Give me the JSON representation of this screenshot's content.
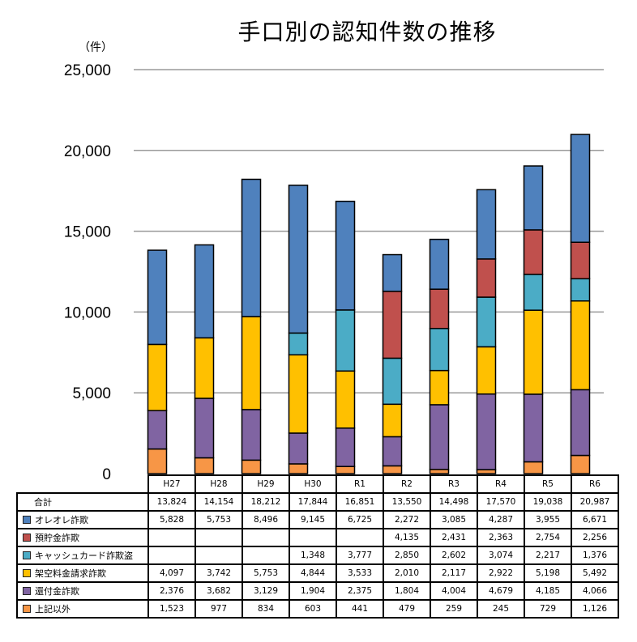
{
  "chart_data": {
    "type": "bar",
    "stacked": true,
    "title": "手口別の認知件数の推移",
    "ylabel": "（件）",
    "xlabel": "",
    "ylim": [
      0,
      25000
    ],
    "yticks": [
      0,
      5000,
      10000,
      15000,
      20000,
      25000
    ],
    "ytick_labels": [
      "0",
      "5,000",
      "10,000",
      "15,000",
      "20,000",
      "25,000"
    ],
    "grid": true,
    "legend": "table-left",
    "categories": [
      "H27",
      "H28",
      "H29",
      "H30",
      "R1",
      "R2",
      "R3",
      "R4",
      "R5",
      "R6"
    ],
    "totals_label": "合計",
    "totals": [
      13824,
      14154,
      18212,
      17844,
      16851,
      13550,
      14498,
      17570,
      19038,
      20987
    ],
    "totals_display": [
      "13,824",
      "14,154",
      "18,212",
      "17,844",
      "16,851",
      "13,550",
      "14,498",
      "17,570",
      "19,038",
      "20,987"
    ],
    "series_stack_order": [
      "上記以外",
      "還付金詐欺",
      "架空料金請求詐欺",
      "キャッシュカード詐欺盗",
      "預貯金詐欺",
      "オレオレ詐欺"
    ],
    "series": [
      {
        "name": "オレオレ詐欺",
        "color": "#4F81BD",
        "values": [
          5828,
          5753,
          8496,
          9145,
          6725,
          2272,
          3085,
          4287,
          3955,
          6671
        ],
        "display": [
          "5,828",
          "5,753",
          "8,496",
          "9,145",
          "6,725",
          "2,272",
          "3,085",
          "4,287",
          "3,955",
          "6,671"
        ]
      },
      {
        "name": "預貯金詐欺",
        "color": "#C0504D",
        "values": [
          null,
          null,
          null,
          null,
          null,
          4135,
          2431,
          2363,
          2754,
          2256
        ],
        "display": [
          "",
          "",
          "",
          "",
          "",
          "4,135",
          "2,431",
          "2,363",
          "2,754",
          "2,256"
        ]
      },
      {
        "name": "キャッシュカード詐欺盗",
        "color": "#4BACC6",
        "values": [
          null,
          null,
          null,
          1348,
          3777,
          2850,
          2602,
          3074,
          2217,
          1376
        ],
        "display": [
          "",
          "",
          "",
          "1,348",
          "3,777",
          "2,850",
          "2,602",
          "3,074",
          "2,217",
          "1,376"
        ]
      },
      {
        "name": "架空料金請求詐欺",
        "color": "#FFC000",
        "values": [
          4097,
          3742,
          5753,
          4844,
          3533,
          2010,
          2117,
          2922,
          5198,
          5492
        ],
        "display": [
          "4,097",
          "3,742",
          "5,753",
          "4,844",
          "3,533",
          "2,010",
          "2,117",
          "2,922",
          "5,198",
          "5,492"
        ]
      },
      {
        "name": "還付金詐欺",
        "color": "#8064A2",
        "values": [
          2376,
          3682,
          3129,
          1904,
          2375,
          1804,
          4004,
          4679,
          4185,
          4066
        ],
        "display": [
          "2,376",
          "3,682",
          "3,129",
          "1,904",
          "2,375",
          "1,804",
          "4,004",
          "4,679",
          "4,185",
          "4,066"
        ]
      },
      {
        "name": "上記以外",
        "color": "#F79646",
        "values": [
          1523,
          977,
          834,
          603,
          441,
          479,
          259,
          245,
          729,
          1126
        ],
        "display": [
          "1,523",
          "977",
          "834",
          "603",
          "441",
          "479",
          "259",
          "245",
          "729",
          "1,126"
        ]
      }
    ]
  }
}
